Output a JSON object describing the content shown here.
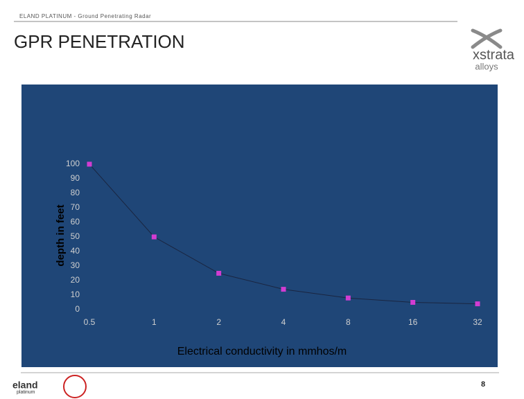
{
  "header": "ELAND PLATINUM - Ground Penetrating Radar",
  "title": "GPR PENETRATION",
  "logo": {
    "name": "xstrata",
    "sub": "alloys"
  },
  "footer_logo": {
    "name": "eland",
    "sub": "platinum"
  },
  "page_number": "8",
  "chart_data": {
    "type": "line",
    "x_label": "Electrical conductivity in mmhos/m",
    "y_label": "depth in feet",
    "x": [
      0.5,
      1,
      2,
      4,
      8,
      16,
      32
    ],
    "series": [
      {
        "name": "depth",
        "color": "#1a2540",
        "marker_color": "#d23cd2",
        "values": [
          100,
          50,
          25,
          14,
          8,
          5,
          4
        ]
      }
    ],
    "xscale": "log",
    "xlim": [
      0.5,
      32
    ],
    "xticks": [
      0.5,
      1,
      2,
      4,
      8,
      16,
      32
    ],
    "ylim": [
      0,
      100
    ],
    "yticks": [
      0,
      10,
      20,
      30,
      40,
      50,
      60,
      70,
      80,
      90,
      100
    ],
    "grid": false
  }
}
